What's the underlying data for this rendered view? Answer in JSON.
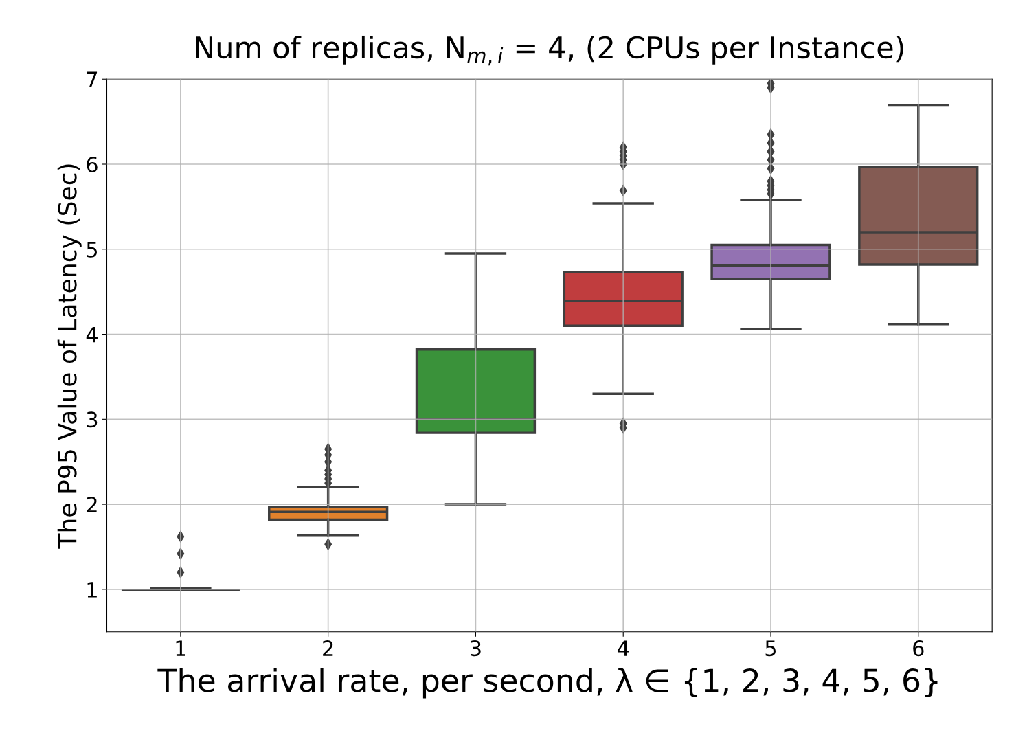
{
  "chart_data": {
    "type": "box",
    "title": "Num of replicas, N$_{m,i}$ = 4, (2 CPUs per Instance)",
    "xlabel": "The arrival rate, per second, λ ∈ {1, 2, 3, 4, 5, 6}",
    "ylabel": "The P95 Value of Latency (Sec)",
    "categories": [
      "1",
      "2",
      "3",
      "4",
      "5",
      "6"
    ],
    "colors": [
      "#3f3f3f",
      "#e1812c",
      "#3a923a",
      "#c03d3e",
      "#9372b2",
      "#845b53"
    ],
    "boxes": [
      {
        "low": 0.99,
        "q1": 0.99,
        "median": 0.99,
        "q3": 0.99,
        "high": 1.01,
        "outliers": [
          1.2,
          1.42,
          1.62
        ]
      },
      {
        "low": 1.64,
        "q1": 1.82,
        "median": 1.91,
        "q3": 1.97,
        "high": 2.2,
        "outliers": [
          1.53,
          2.25,
          2.3,
          2.35,
          2.4,
          2.5,
          2.58,
          2.65
        ]
      },
      {
        "low": 2.0,
        "q1": 2.84,
        "median": 3.0,
        "q3": 3.82,
        "high": 4.95
      },
      {
        "low": 3.3,
        "q1": 4.1,
        "median": 4.39,
        "q3": 4.73,
        "high": 5.54,
        "outliers": [
          2.9,
          2.95,
          5.69,
          6.0,
          6.05,
          6.1,
          6.15,
          6.2
        ]
      },
      {
        "low": 4.06,
        "q1": 4.65,
        "median": 4.81,
        "q3": 5.05,
        "high": 5.58,
        "outliers": [
          5.65,
          5.7,
          5.75,
          5.8,
          5.95,
          6.05,
          6.15,
          6.25,
          6.35,
          6.9,
          6.95
        ]
      },
      {
        "low": 4.12,
        "q1": 4.82,
        "median": 5.2,
        "q3": 5.97,
        "high": 6.69
      }
    ],
    "ylim": [
      0.5,
      7
    ],
    "yticks": [
      1,
      2,
      3,
      4,
      5,
      6,
      7
    ],
    "grid": true,
    "marker": "diamond"
  }
}
